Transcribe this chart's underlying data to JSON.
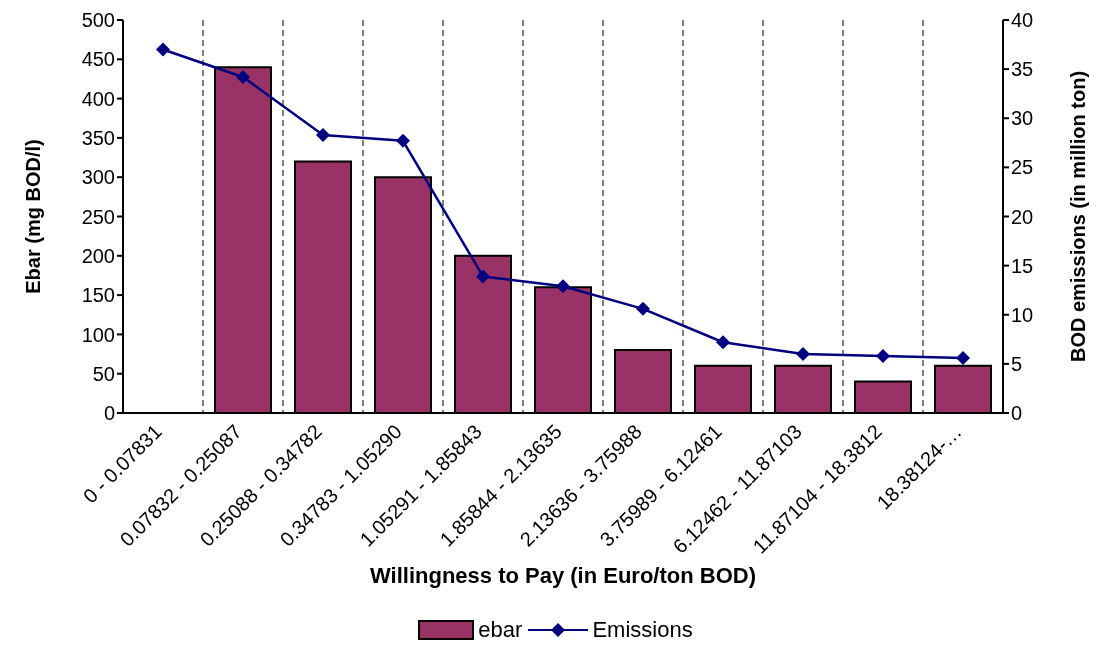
{
  "chart_data": {
    "type": "bar",
    "xlabel": "Willingness to Pay (in Euro/ton BOD)",
    "ylabel": "Ebar (mg BOD/l)",
    "y2label": "BOD emissions (in million ton)",
    "categories": [
      "0 - 0.07831",
      "0.07832 - 0.25087",
      "0.25088 - 0.34782",
      "0.34783 - 1.05290",
      "1.05291 - 1.85843",
      "1.85844 - 2.13635",
      "2.13636 - 3.75988",
      "3.75989 - 6.12461",
      "6.12462 - 11.87103",
      "11.87104 - 18.3812",
      "18.38124-…"
    ],
    "series": [
      {
        "name": "ebar",
        "color": "#993366",
        "values": [
          null,
          440,
          320,
          300,
          200,
          160,
          80,
          60,
          60,
          40,
          60
        ]
      },
      {
        "name": "Emissions",
        "type": "line",
        "axis": "y2",
        "color": "#000080",
        "marker": "diamond",
        "line_style": "solid",
        "values": [
          37,
          34.2,
          28.3,
          27.7,
          13.9,
          12.9,
          10.6,
          7.2,
          6.0,
          5.8,
          5.6
        ]
      }
    ],
    "ylim": [
      0,
      500
    ],
    "yticks": [
      0,
      50,
      100,
      150,
      200,
      250,
      300,
      350,
      400,
      450,
      500
    ],
    "y2lim": [
      0,
      40
    ],
    "y2ticks": [
      0,
      5,
      10,
      15,
      20,
      25,
      30,
      35,
      40
    ],
    "grid": "x",
    "legend": "bottom"
  }
}
